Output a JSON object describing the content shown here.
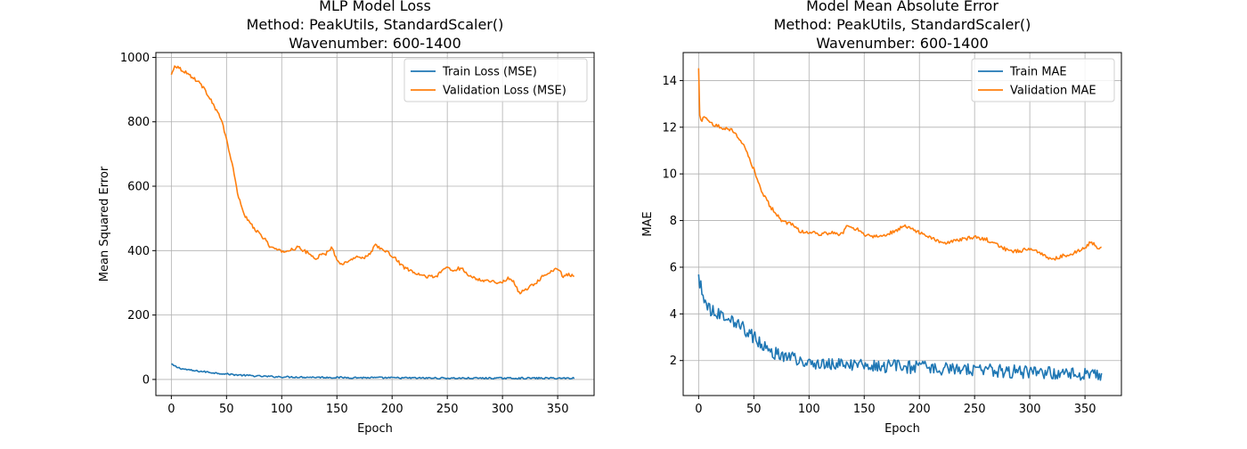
{
  "colors": {
    "train": "#1f77b4",
    "validation": "#ff7f0e",
    "grid": "#b0b0b0",
    "axis": "#000000"
  },
  "chart_data": [
    {
      "type": "line",
      "title_lines": [
        "MLP Model Loss",
        "Method: PeakUtils, StandardScaler()",
        "Wavenumber: 600-1400"
      ],
      "xlabel": "Epoch",
      "ylabel": "Mean Squared Error",
      "xlim": [
        -14,
        383
      ],
      "ylim": [
        -50,
        1015
      ],
      "xticks": [
        0,
        50,
        100,
        150,
        200,
        250,
        300,
        350
      ],
      "yticks": [
        0,
        200,
        400,
        600,
        800,
        1000
      ],
      "grid": true,
      "legend_position": "upper right",
      "series": [
        {
          "name": "Train Loss (MSE)",
          "color_key": "train",
          "noise": 2.5,
          "x": [
            0,
            5,
            10,
            20,
            30,
            40,
            50,
            60,
            70,
            80,
            100,
            150,
            200,
            250,
            300,
            365
          ],
          "y": [
            47,
            38,
            33,
            27,
            24,
            20,
            17,
            14,
            12,
            10,
            8,
            6,
            5,
            4,
            4,
            4
          ]
        },
        {
          "name": "Validation Loss (MSE)",
          "color_key": "validation",
          "noise": 5,
          "x": [
            0,
            3,
            6,
            10,
            15,
            20,
            25,
            30,
            35,
            40,
            45,
            50,
            55,
            60,
            65,
            70,
            75,
            80,
            85,
            90,
            95,
            100,
            105,
            110,
            115,
            120,
            125,
            130,
            135,
            140,
            145,
            150,
            155,
            160,
            165,
            170,
            175,
            180,
            185,
            190,
            195,
            200,
            210,
            220,
            230,
            240,
            250,
            255,
            260,
            265,
            270,
            280,
            290,
            300,
            305,
            310,
            315,
            320,
            325,
            330,
            340,
            350,
            355,
            360,
            365
          ],
          "y": [
            945,
            975,
            970,
            960,
            950,
            935,
            925,
            900,
            875,
            840,
            810,
            745,
            670,
            580,
            520,
            490,
            470,
            450,
            435,
            410,
            405,
            395,
            400,
            405,
            410,
            400,
            390,
            375,
            385,
            390,
            410,
            375,
            355,
            370,
            375,
            380,
            380,
            390,
            420,
            405,
            395,
            385,
            350,
            330,
            320,
            320,
            350,
            335,
            345,
            340,
            320,
            310,
            305,
            300,
            315,
            305,
            270,
            275,
            290,
            300,
            330,
            345,
            320,
            325,
            320
          ]
        }
      ]
    },
    {
      "type": "line",
      "title_lines": [
        "Model Mean Absolute Error",
        "Method: PeakUtils, StandardScaler()",
        "Wavenumber: 600-1400"
      ],
      "xlabel": "Epoch",
      "ylabel": "MAE",
      "xlim": [
        -14,
        383
      ],
      "ylim": [
        0.5,
        15.2
      ],
      "xticks": [
        0,
        50,
        100,
        150,
        200,
        250,
        300,
        350
      ],
      "yticks": [
        2,
        4,
        6,
        8,
        10,
        12,
        14
      ],
      "grid": true,
      "legend_position": "upper right",
      "series": [
        {
          "name": "Train MAE",
          "color_key": "train",
          "noise": 0.28,
          "x": [
            0,
            3,
            6,
            10,
            20,
            30,
            40,
            50,
            60,
            70,
            80,
            90,
            100,
            120,
            150,
            200,
            250,
            300,
            365
          ],
          "y": [
            5.6,
            4.9,
            4.6,
            4.2,
            4.0,
            3.8,
            3.4,
            3.0,
            2.6,
            2.3,
            2.2,
            2.0,
            1.9,
            1.85,
            1.8,
            1.7,
            1.6,
            1.5,
            1.4
          ]
        },
        {
          "name": "Validation MAE",
          "color_key": "validation",
          "noise": 0.08,
          "x": [
            0,
            1,
            2,
            5,
            10,
            15,
            20,
            30,
            35,
            40,
            45,
            50,
            55,
            60,
            65,
            70,
            75,
            80,
            85,
            90,
            95,
            100,
            110,
            120,
            130,
            135,
            140,
            145,
            150,
            160,
            170,
            180,
            185,
            190,
            200,
            210,
            220,
            230,
            240,
            250,
            260,
            270,
            280,
            290,
            300,
            310,
            320,
            330,
            340,
            350,
            355,
            360,
            365
          ],
          "y": [
            14.5,
            12.5,
            12.3,
            12.4,
            12.2,
            12.1,
            12.0,
            11.9,
            11.6,
            11.3,
            10.8,
            10.2,
            9.5,
            9.0,
            8.6,
            8.3,
            8.0,
            7.9,
            7.8,
            7.6,
            7.5,
            7.5,
            7.4,
            7.5,
            7.4,
            7.8,
            7.7,
            7.6,
            7.4,
            7.3,
            7.4,
            7.6,
            7.8,
            7.7,
            7.5,
            7.3,
            7.0,
            7.1,
            7.2,
            7.3,
            7.2,
            7.0,
            6.7,
            6.7,
            6.8,
            6.6,
            6.3,
            6.5,
            6.6,
            6.8,
            7.1,
            6.9,
            6.8
          ]
        }
      ]
    }
  ]
}
